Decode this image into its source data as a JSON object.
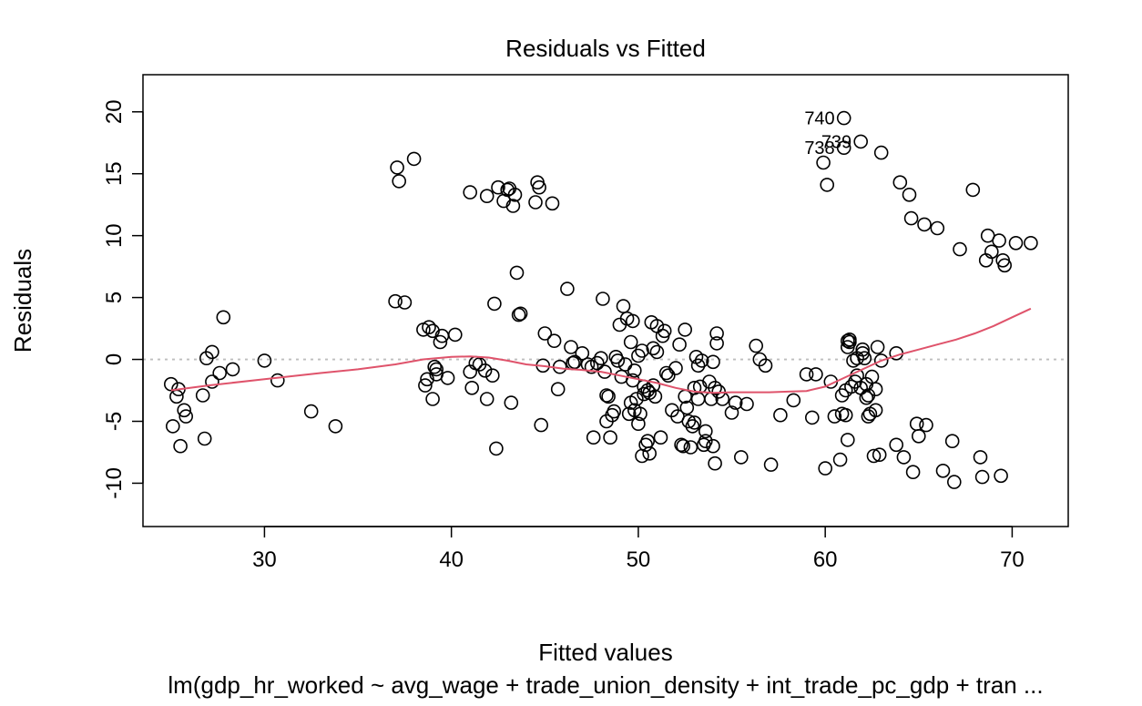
{
  "chart_data": {
    "type": "scatter",
    "title": "Residuals vs Fitted",
    "xlabel": "Fitted values",
    "ylabel": "Residuals",
    "subtitle": "lm(gdp_hr_worked ~ avg_wage + trade_union_density + int_trade_pc_gdp + tran ...",
    "xlim": [
      23.5,
      73.0
    ],
    "ylim": [
      -13.5,
      23.0
    ],
    "x_ticks": [
      30,
      40,
      50,
      60,
      70
    ],
    "x_tick_labels": [
      "30",
      "40",
      "50",
      "60",
      "70"
    ],
    "y_ticks": [
      -10,
      -5,
      0,
      5,
      10,
      15,
      20
    ],
    "y_tick_labels": [
      "-10",
      "-5",
      "0",
      "5",
      "10",
      "15",
      "20"
    ],
    "grid": false,
    "reference_line": {
      "y": 0,
      "style": "dotted",
      "color": "#BEBEBE"
    },
    "colors": {
      "points": "#000000",
      "smooth": "#DF536B"
    },
    "points": [
      [
        25.0,
        -2.0
      ],
      [
        25.1,
        -5.4
      ],
      [
        25.3,
        -3.0
      ],
      [
        25.4,
        -2.4
      ],
      [
        25.5,
        -7.0
      ],
      [
        25.7,
        -4.1
      ],
      [
        25.8,
        -4.6
      ],
      [
        26.7,
        -2.9
      ],
      [
        26.8,
        -6.4
      ],
      [
        26.9,
        0.1
      ],
      [
        27.2,
        0.6
      ],
      [
        27.2,
        -1.8
      ],
      [
        27.6,
        -1.1
      ],
      [
        27.8,
        3.4
      ],
      [
        28.3,
        -0.8
      ],
      [
        30.0,
        -0.1
      ],
      [
        30.7,
        -1.7
      ],
      [
        32.5,
        -4.2
      ],
      [
        33.8,
        -5.4
      ],
      [
        37.0,
        4.7
      ],
      [
        37.1,
        15.5
      ],
      [
        37.2,
        14.4
      ],
      [
        37.5,
        4.6
      ],
      [
        38.0,
        16.2
      ],
      [
        38.5,
        2.4
      ],
      [
        38.6,
        -2.1
      ],
      [
        38.7,
        -1.6
      ],
      [
        38.8,
        2.6
      ],
      [
        39.0,
        2.3
      ],
      [
        39.0,
        -3.2
      ],
      [
        39.1,
        -0.6
      ],
      [
        39.2,
        -0.8
      ],
      [
        39.2,
        -1.2
      ],
      [
        39.4,
        1.4
      ],
      [
        39.5,
        1.9
      ],
      [
        39.8,
        -1.5
      ],
      [
        40.2,
        2.0
      ],
      [
        41.0,
        13.5
      ],
      [
        41.0,
        -1.0
      ],
      [
        41.1,
        -2.3
      ],
      [
        41.3,
        -0.3
      ],
      [
        41.5,
        -0.4
      ],
      [
        41.8,
        -0.9
      ],
      [
        41.9,
        13.2
      ],
      [
        41.9,
        -3.2
      ],
      [
        42.2,
        -1.3
      ],
      [
        42.3,
        4.5
      ],
      [
        42.4,
        -7.2
      ],
      [
        42.5,
        13.9
      ],
      [
        42.8,
        12.8
      ],
      [
        43.0,
        13.7
      ],
      [
        43.1,
        13.8
      ],
      [
        43.2,
        -3.5
      ],
      [
        43.3,
        12.4
      ],
      [
        43.4,
        13.3
      ],
      [
        43.5,
        7.0
      ],
      [
        43.6,
        3.6
      ],
      [
        43.7,
        3.7
      ],
      [
        44.5,
        12.7
      ],
      [
        44.6,
        14.3
      ],
      [
        44.7,
        13.9
      ],
      [
        44.8,
        -5.3
      ],
      [
        44.9,
        -0.5
      ],
      [
        45.0,
        2.1
      ],
      [
        45.4,
        12.6
      ],
      [
        45.5,
        1.5
      ],
      [
        45.7,
        -2.4
      ],
      [
        45.8,
        -0.6
      ],
      [
        46.2,
        5.7
      ],
      [
        46.4,
        1.0
      ],
      [
        46.5,
        -0.3
      ],
      [
        46.6,
        -0.2
      ],
      [
        47.0,
        0.5
      ],
      [
        47.3,
        -0.4
      ],
      [
        47.5,
        -0.6
      ],
      [
        47.6,
        -6.3
      ],
      [
        47.8,
        -0.3
      ],
      [
        48.0,
        0.1
      ],
      [
        48.1,
        4.9
      ],
      [
        48.2,
        -1.0
      ],
      [
        48.3,
        -2.9
      ],
      [
        48.3,
        -5.0
      ],
      [
        48.4,
        -3.0
      ],
      [
        48.5,
        -6.3
      ],
      [
        48.6,
        -4.5
      ],
      [
        48.7,
        -4.2
      ],
      [
        48.8,
        0.2
      ],
      [
        48.9,
        -0.1
      ],
      [
        49.0,
        2.8
      ],
      [
        49.1,
        -1.4
      ],
      [
        49.2,
        4.3
      ],
      [
        49.3,
        -0.4
      ],
      [
        49.4,
        3.3
      ],
      [
        49.5,
        -4.4
      ],
      [
        49.6,
        1.4
      ],
      [
        49.6,
        -3.5
      ],
      [
        49.7,
        -1.7
      ],
      [
        49.7,
        3.1
      ],
      [
        49.8,
        -0.9
      ],
      [
        49.8,
        -4.1
      ],
      [
        49.9,
        -3.2
      ],
      [
        50.0,
        0.3
      ],
      [
        50.0,
        -5.2
      ],
      [
        50.1,
        -4.4
      ],
      [
        50.2,
        -7.8
      ],
      [
        50.2,
        0.7
      ],
      [
        50.3,
        -2.2
      ],
      [
        50.3,
        -2.8
      ],
      [
        50.4,
        -6.9
      ],
      [
        50.5,
        -2.5
      ],
      [
        50.5,
        -6.6
      ],
      [
        50.6,
        -7.6
      ],
      [
        50.6,
        -2.7
      ],
      [
        50.7,
        3.0
      ],
      [
        50.8,
        -2.1
      ],
      [
        50.8,
        0.9
      ],
      [
        50.9,
        -3.0
      ],
      [
        51.0,
        2.7
      ],
      [
        51.0,
        0.6
      ],
      [
        51.2,
        -6.3
      ],
      [
        51.3,
        1.9
      ],
      [
        51.4,
        2.3
      ],
      [
        51.5,
        -1.1
      ],
      [
        51.6,
        -1.3
      ],
      [
        51.8,
        -4.1
      ],
      [
        52.0,
        -0.7
      ],
      [
        52.1,
        -4.6
      ],
      [
        52.2,
        1.2
      ],
      [
        52.3,
        -6.9
      ],
      [
        52.4,
        -7.0
      ],
      [
        52.5,
        2.4
      ],
      [
        52.5,
        -3.0
      ],
      [
        52.6,
        -3.9
      ],
      [
        52.7,
        -5.0
      ],
      [
        52.8,
        -7.1
      ],
      [
        52.9,
        -5.4
      ],
      [
        53.0,
        -5.1
      ],
      [
        53.0,
        -2.3
      ],
      [
        53.1,
        0.2
      ],
      [
        53.2,
        -0.5
      ],
      [
        53.2,
        -3.2
      ],
      [
        53.3,
        -2.2
      ],
      [
        53.4,
        -0.1
      ],
      [
        53.5,
        -6.9
      ],
      [
        53.6,
        -5.8
      ],
      [
        53.6,
        -6.6
      ],
      [
        53.8,
        -1.8
      ],
      [
        53.9,
        -3.2
      ],
      [
        54.0,
        -7.0
      ],
      [
        54.0,
        -0.2
      ],
      [
        54.1,
        -2.3
      ],
      [
        54.1,
        -8.4
      ],
      [
        54.2,
        2.1
      ],
      [
        54.2,
        1.3
      ],
      [
        54.3,
        -2.6
      ],
      [
        54.5,
        -3.2
      ],
      [
        55.0,
        -4.3
      ],
      [
        55.2,
        -3.5
      ],
      [
        55.5,
        -7.9
      ],
      [
        55.8,
        -3.6
      ],
      [
        56.3,
        1.1
      ],
      [
        56.5,
        0.0
      ],
      [
        56.8,
        -0.5
      ],
      [
        57.1,
        -8.5
      ],
      [
        57.6,
        -4.5
      ],
      [
        58.3,
        -3.3
      ],
      [
        59.0,
        -1.2
      ],
      [
        59.3,
        -4.7
      ],
      [
        59.5,
        -1.2
      ],
      [
        59.9,
        15.9
      ],
      [
        60.0,
        -8.8
      ],
      [
        60.1,
        14.1
      ],
      [
        60.3,
        -1.8
      ],
      [
        60.5,
        -4.6
      ],
      [
        60.8,
        -8.1
      ],
      [
        60.9,
        -2.9
      ],
      [
        60.9,
        -4.4
      ],
      [
        61.0,
        19.5
      ],
      [
        61.0,
        17.1
      ],
      [
        61.1,
        -2.5
      ],
      [
        61.1,
        -4.5
      ],
      [
        61.2,
        -6.5
      ],
      [
        61.2,
        1.0
      ],
      [
        61.2,
        1.5
      ],
      [
        61.3,
        1.4
      ],
      [
        61.3,
        1.6
      ],
      [
        61.4,
        -2.2
      ],
      [
        61.5,
        -0.1
      ],
      [
        61.6,
        -1.8
      ],
      [
        61.7,
        -1.3
      ],
      [
        61.7,
        0.1
      ],
      [
        61.9,
        -2.3
      ],
      [
        61.9,
        17.6
      ],
      [
        62.0,
        0.8
      ],
      [
        62.0,
        0.5
      ],
      [
        62.1,
        0.1
      ],
      [
        62.2,
        -2.0
      ],
      [
        62.2,
        -3.1
      ],
      [
        62.3,
        -4.6
      ],
      [
        62.3,
        -2.9
      ],
      [
        62.4,
        -4.4
      ],
      [
        62.5,
        -1.4
      ],
      [
        62.6,
        -7.8
      ],
      [
        62.7,
        -2.4
      ],
      [
        62.7,
        -4.1
      ],
      [
        62.8,
        1.0
      ],
      [
        62.9,
        -7.7
      ],
      [
        63.0,
        -0.1
      ],
      [
        63.0,
        16.7
      ],
      [
        63.8,
        0.5
      ],
      [
        63.8,
        -6.9
      ],
      [
        64.0,
        14.3
      ],
      [
        64.2,
        -7.9
      ],
      [
        64.5,
        13.3
      ],
      [
        64.6,
        11.4
      ],
      [
        64.7,
        -9.1
      ],
      [
        64.9,
        -5.2
      ],
      [
        65.0,
        -6.2
      ],
      [
        65.3,
        10.9
      ],
      [
        65.4,
        -5.3
      ],
      [
        66.0,
        10.6
      ],
      [
        66.3,
        -9.0
      ],
      [
        66.8,
        -6.6
      ],
      [
        66.9,
        -9.9
      ],
      [
        67.2,
        8.9
      ],
      [
        67.9,
        13.7
      ],
      [
        68.3,
        -7.9
      ],
      [
        68.4,
        -9.5
      ],
      [
        68.6,
        8.0
      ],
      [
        68.7,
        10.0
      ],
      [
        68.9,
        8.7
      ],
      [
        69.3,
        9.6
      ],
      [
        69.4,
        -9.4
      ],
      [
        69.5,
        8.0
      ],
      [
        69.6,
        7.6
      ],
      [
        70.2,
        9.4
      ],
      [
        71.0,
        9.4
      ]
    ],
    "point_labels": [
      {
        "text": "740",
        "x": 61.0,
        "y": 19.5
      },
      {
        "text": "739",
        "x": 61.9,
        "y": 17.6
      },
      {
        "text": "738",
        "x": 61.0,
        "y": 17.1
      }
    ],
    "smooth_line": [
      [
        25.0,
        -2.5
      ],
      [
        27.0,
        -2.1
      ],
      [
        30.0,
        -1.6
      ],
      [
        33.0,
        -1.1
      ],
      [
        35.0,
        -0.8
      ],
      [
        37.0,
        -0.4
      ],
      [
        38.5,
        0.0
      ],
      [
        40.0,
        0.2
      ],
      [
        41.0,
        0.25
      ],
      [
        42.0,
        0.15
      ],
      [
        43.0,
        -0.1
      ],
      [
        44.0,
        -0.4
      ],
      [
        45.0,
        -0.55
      ],
      [
        46.0,
        -0.75
      ],
      [
        47.0,
        -0.85
      ],
      [
        48.0,
        -1.0
      ],
      [
        49.0,
        -1.3
      ],
      [
        50.0,
        -1.6
      ],
      [
        51.0,
        -1.9
      ],
      [
        52.0,
        -2.3
      ],
      [
        53.0,
        -2.6
      ],
      [
        54.0,
        -2.7
      ],
      [
        55.0,
        -2.65
      ],
      [
        56.0,
        -2.65
      ],
      [
        57.0,
        -2.65
      ],
      [
        58.0,
        -2.6
      ],
      [
        59.0,
        -2.55
      ],
      [
        60.0,
        -2.2
      ],
      [
        61.0,
        -1.5
      ],
      [
        62.0,
        -0.8
      ],
      [
        63.0,
        -0.1
      ],
      [
        64.0,
        0.4
      ],
      [
        65.0,
        0.8
      ],
      [
        66.0,
        1.2
      ],
      [
        67.0,
        1.6
      ],
      [
        68.0,
        2.1
      ],
      [
        69.0,
        2.7
      ],
      [
        70.0,
        3.4
      ],
      [
        71.0,
        4.1
      ]
    ]
  }
}
